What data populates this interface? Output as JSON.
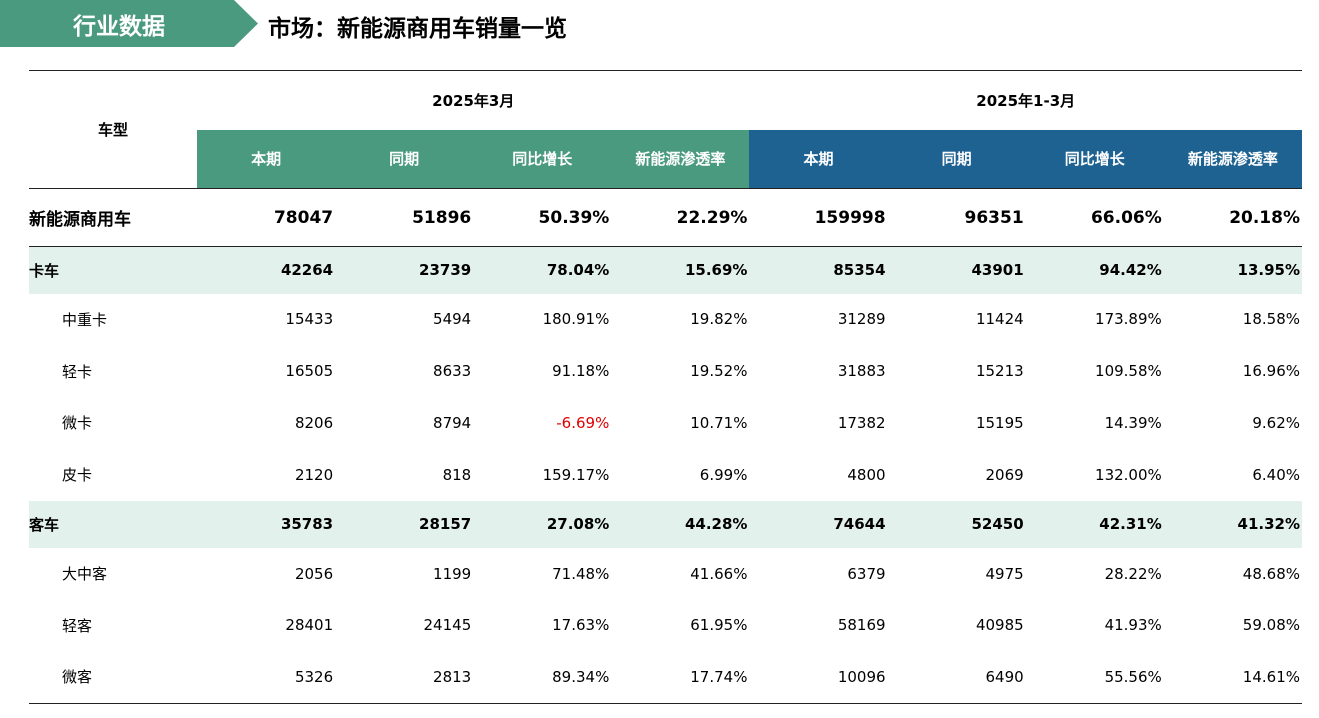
{
  "header": {
    "tag": "行业数据",
    "title": "市场：新能源商用车销量一览"
  },
  "table": {
    "type_header": "车型",
    "periods": [
      "2025年3月",
      "2025年1-3月"
    ],
    "sub_headers": [
      "本期",
      "同期",
      "同比增长",
      "新能源渗透率",
      "本期",
      "同期",
      "同比增长",
      "新能源渗透率"
    ],
    "total": {
      "label": "新能源商用车",
      "values": [
        "78047",
        "51896",
        "50.39%",
        "22.29%",
        "159998",
        "96351",
        "66.06%",
        "20.18%"
      ]
    },
    "truck": {
      "label": "卡车",
      "values": [
        "42264",
        "23739",
        "78.04%",
        "15.69%",
        "85354",
        "43901",
        "94.42%",
        "13.95%"
      ]
    },
    "truck_items": [
      {
        "label": "中重卡",
        "values": [
          "15433",
          "5494",
          "180.91%",
          "19.82%",
          "31289",
          "11424",
          "173.89%",
          "18.58%"
        ]
      },
      {
        "label": "轻卡",
        "values": [
          "16505",
          "8633",
          "91.18%",
          "19.52%",
          "31883",
          "15213",
          "109.58%",
          "16.96%"
        ]
      },
      {
        "label": "微卡",
        "values": [
          "8206",
          "8794",
          "-6.69%",
          "10.71%",
          "17382",
          "15195",
          "14.39%",
          "9.62%"
        ]
      },
      {
        "label": "皮卡",
        "values": [
          "2120",
          "818",
          "159.17%",
          "6.99%",
          "4800",
          "2069",
          "132.00%",
          "6.40%"
        ]
      }
    ],
    "bus": {
      "label": "客车",
      "values": [
        "35783",
        "28157",
        "27.08%",
        "44.28%",
        "74644",
        "52450",
        "42.31%",
        "41.32%"
      ]
    },
    "bus_items": [
      {
        "label": "大中客",
        "values": [
          "2056",
          "1199",
          "71.48%",
          "41.66%",
          "6379",
          "4975",
          "28.22%",
          "48.68%"
        ]
      },
      {
        "label": "轻客",
        "values": [
          "28401",
          "24145",
          "17.63%",
          "61.95%",
          "58169",
          "40985",
          "41.93%",
          "59.08%"
        ]
      },
      {
        "label": "微客",
        "values": [
          "5326",
          "2813",
          "89.34%",
          "17.74%",
          "10096",
          "6490",
          "55.56%",
          "14.61%"
        ]
      }
    ]
  },
  "colors": {
    "green": "#4a9a7f",
    "blue": "#1e6292",
    "category_row_bg": "#e3f1ec",
    "negative": "#e00000"
  }
}
